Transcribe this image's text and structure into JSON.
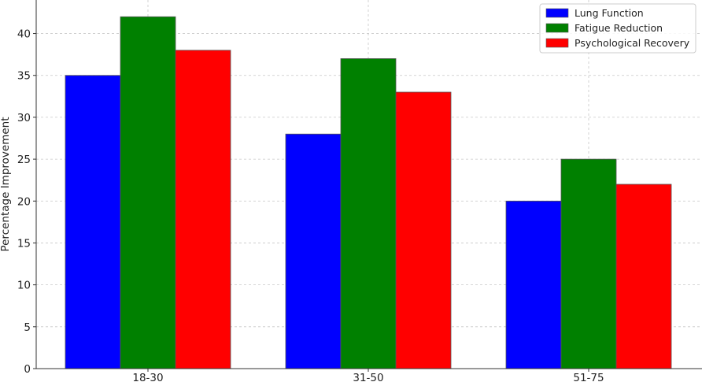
{
  "chart_data": {
    "type": "bar",
    "categories": [
      "18-30",
      "31-50",
      "51-75"
    ],
    "series": [
      {
        "name": "Lung Function",
        "values": [
          35,
          28,
          20
        ],
        "color": "#0000ff"
      },
      {
        "name": "Fatigue Reduction",
        "values": [
          42,
          37,
          25
        ],
        "color": "#008000"
      },
      {
        "name": "Psychological Recovery",
        "values": [
          38,
          33,
          22
        ],
        "color": "#ff0000"
      }
    ],
    "title": "",
    "xlabel": "",
    "ylabel": "Percentage Improvement",
    "ylim": [
      0,
      44
    ],
    "yticks": [
      0,
      5,
      10,
      15,
      20,
      25,
      30,
      35,
      40
    ],
    "grid": true,
    "legend_position": "top-right"
  }
}
